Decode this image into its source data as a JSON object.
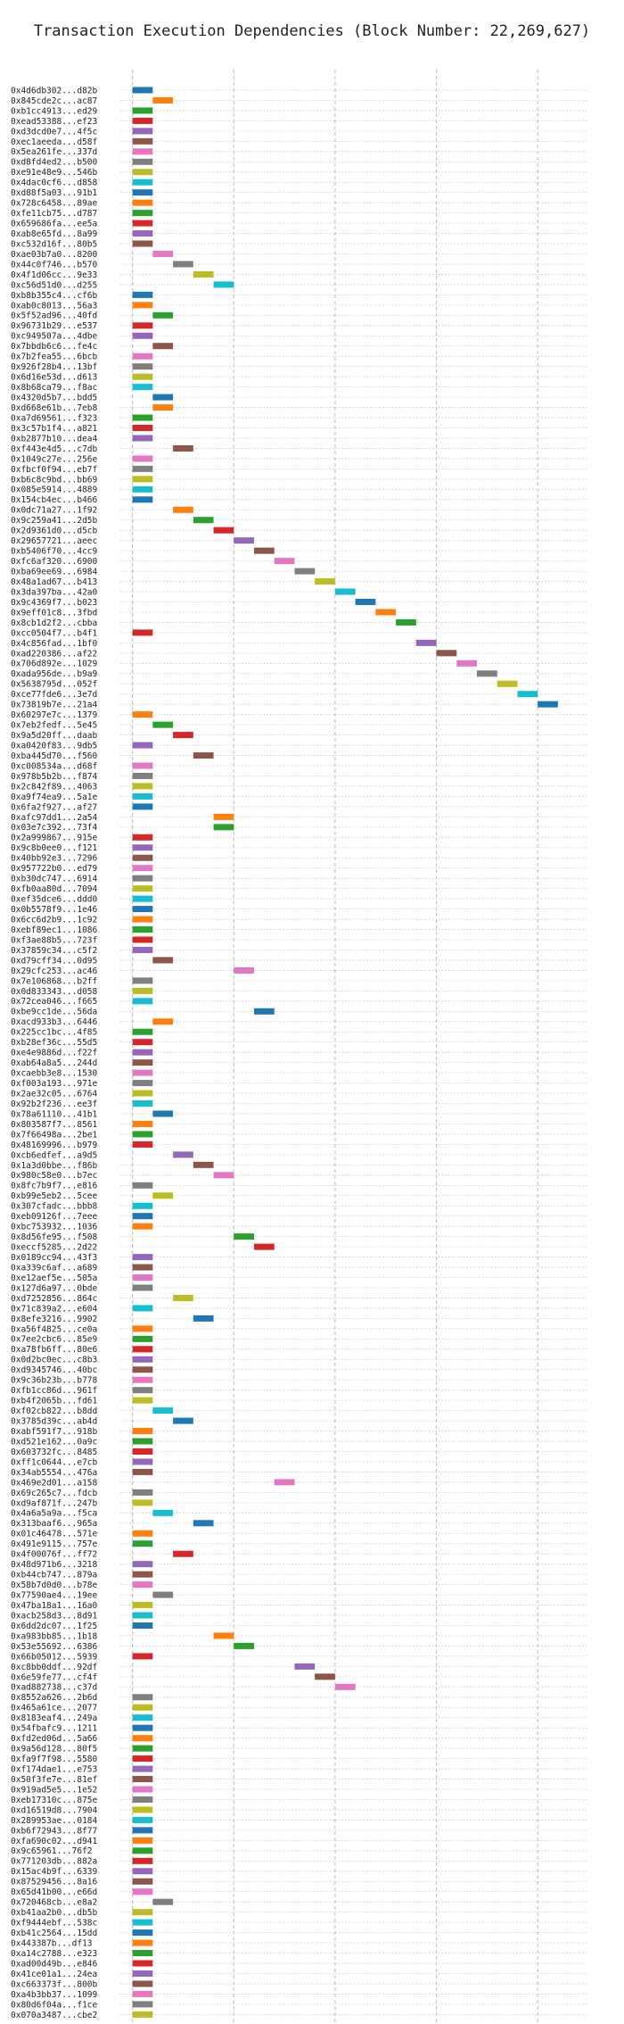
{
  "chart_data": {
    "type": "bar",
    "orientation": "horizontal-gantt",
    "title": "Transaction Execution Dependencies (Block Number: 22,269,627)",
    "xlabel": "",
    "ylabel": "",
    "xlim": [
      -0.6,
      22.5
    ],
    "xticks": [
      0,
      5,
      10,
      15,
      20
    ],
    "grid": true,
    "bar_length": 1,
    "palette": [
      "#1f77b4",
      "#ff7f0e",
      "#2ca02c",
      "#d62728",
      "#9467bd",
      "#8c564b",
      "#e377c2",
      "#7f7f7f",
      "#bcbd22",
      "#17becf"
    ],
    "transactions": [
      {
        "label": "0x4d6db302...d82b",
        "start": 0
      },
      {
        "label": "0x845cde2c...ac87",
        "start": 1
      },
      {
        "label": "0xb1cc4913...ed29",
        "start": 0
      },
      {
        "label": "0xead53388...ef23",
        "start": 0
      },
      {
        "label": "0xd3dcd0e7...4f5c",
        "start": 0
      },
      {
        "label": "0xec1aeeda...d58f",
        "start": 0
      },
      {
        "label": "0x5ea261fe...337d",
        "start": 0
      },
      {
        "label": "0xd8fd4ed2...b500",
        "start": 0
      },
      {
        "label": "0xe91e48e9...546b",
        "start": 0
      },
      {
        "label": "0x4dac0cf6...d858",
        "start": 0
      },
      {
        "label": "0xd88f5a03...91b1",
        "start": 0
      },
      {
        "label": "0x728c6458...89ae",
        "start": 0
      },
      {
        "label": "0xfe11cb75...d787",
        "start": 0
      },
      {
        "label": "0x659686fa...ee5a",
        "start": 0
      },
      {
        "label": "0xab8e65fd...8a99",
        "start": 0
      },
      {
        "label": "0xc532d16f...80b5",
        "start": 0
      },
      {
        "label": "0xae03b7a0...8200",
        "start": 1
      },
      {
        "label": "0x44c0f746...b570",
        "start": 2
      },
      {
        "label": "0x4f1d06cc...9e33",
        "start": 3
      },
      {
        "label": "0xc56d51d0...d255",
        "start": 4
      },
      {
        "label": "0xb8b355c4...cf6b",
        "start": 0
      },
      {
        "label": "0xab0c8013...56a3",
        "start": 0
      },
      {
        "label": "0x5f52ad96...40fd",
        "start": 1
      },
      {
        "label": "0x96731b29...e537",
        "start": 0
      },
      {
        "label": "0xc949507a...4dbe",
        "start": 0
      },
      {
        "label": "0x7bbdb6c6...fe4c",
        "start": 1
      },
      {
        "label": "0x7b2fea55...6bcb",
        "start": 0
      },
      {
        "label": "0x926f28b4...13bf",
        "start": 0
      },
      {
        "label": "0x6d16e53d...d613",
        "start": 0
      },
      {
        "label": "0x8b68ca79...f8ac",
        "start": 0
      },
      {
        "label": "0x4320d5b7...bdd5",
        "start": 1
      },
      {
        "label": "0xd668e61b...7eb8",
        "start": 1
      },
      {
        "label": "0xa7d69561...f323",
        "start": 0
      },
      {
        "label": "0x3c57b1f4...a821",
        "start": 0
      },
      {
        "label": "0xb2877b10...dea4",
        "start": 0
      },
      {
        "label": "0xf443e4d5...c7db",
        "start": 2
      },
      {
        "label": "0x1049c27e...256e",
        "start": 0
      },
      {
        "label": "0xfbcf0f94...eb7f",
        "start": 0
      },
      {
        "label": "0xb6c8c9bd...bb69",
        "start": 0
      },
      {
        "label": "0x085e5914...4889",
        "start": 0
      },
      {
        "label": "0x154cb4ec...b466",
        "start": 0
      },
      {
        "label": "0x0dc71a27...1f92",
        "start": 2
      },
      {
        "label": "0x9c259a41...2d5b",
        "start": 3
      },
      {
        "label": "0x2d9361d0...d5cb",
        "start": 4
      },
      {
        "label": "0x29657721...aeec",
        "start": 5
      },
      {
        "label": "0xb5406f70...4cc9",
        "start": 6
      },
      {
        "label": "0xfc6af320...6900",
        "start": 7
      },
      {
        "label": "0xba69ee69...6984",
        "start": 8
      },
      {
        "label": "0x48a1ad67...b413",
        "start": 9
      },
      {
        "label": "0x3da397ba...42a0",
        "start": 10
      },
      {
        "label": "0x9c4369f7...b023",
        "start": 11
      },
      {
        "label": "0x9eff01c8...3fbd",
        "start": 12
      },
      {
        "label": "0x8cb1d2f2...cbba",
        "start": 13
      },
      {
        "label": "0xcc0504f7...b4f1",
        "start": 0
      },
      {
        "label": "0x4c856fad...1bf0",
        "start": 14
      },
      {
        "label": "0xad220386...af22",
        "start": 15
      },
      {
        "label": "0x706d892e...1029",
        "start": 16
      },
      {
        "label": "0xada956de...b9a9",
        "start": 17
      },
      {
        "label": "0x5638795d...052f",
        "start": 18
      },
      {
        "label": "0xce77fde6...3e7d",
        "start": 19
      },
      {
        "label": "0x73819b7e...21a4",
        "start": 20
      },
      {
        "label": "0x60297e7c...1379",
        "start": 0
      },
      {
        "label": "0x7eb2fedf...5e45",
        "start": 1
      },
      {
        "label": "0x9a5d20ff...daab",
        "start": 2
      },
      {
        "label": "0xa0420f83...9db5",
        "start": 0
      },
      {
        "label": "0xba445d70...f560",
        "start": 3
      },
      {
        "label": "0xc008534a...d68f",
        "start": 0
      },
      {
        "label": "0x978b5b2b...f874",
        "start": 0
      },
      {
        "label": "0x2c842f89...4063",
        "start": 0
      },
      {
        "label": "0xa9f74ea9...5a1e",
        "start": 0
      },
      {
        "label": "0x6fa2f927...af27",
        "start": 0
      },
      {
        "label": "0xafc97dd1...2a54",
        "start": 4
      },
      {
        "label": "0x03e7c392...73f4",
        "start": 4
      },
      {
        "label": "0x2a999867...915e",
        "start": 0
      },
      {
        "label": "0x9c8b0ee0...f121",
        "start": 0
      },
      {
        "label": "0x40bb92e3...7296",
        "start": 0
      },
      {
        "label": "0x957722b0...ed79",
        "start": 0
      },
      {
        "label": "0xb30dc747...6914",
        "start": 0
      },
      {
        "label": "0xfb0aa80d...7094",
        "start": 0
      },
      {
        "label": "0xef35dce6...ddd0",
        "start": 0
      },
      {
        "label": "0x0b5578f9...1e46",
        "start": 0
      },
      {
        "label": "0x6cc6d2b9...1c92",
        "start": 0
      },
      {
        "label": "0xebf89ec1...1086",
        "start": 0
      },
      {
        "label": "0xf3ae88b5...723f",
        "start": 0
      },
      {
        "label": "0x37859c34...c5f2",
        "start": 0
      },
      {
        "label": "0xd79cff34...0d95",
        "start": 1
      },
      {
        "label": "0x29cfc253...ac46",
        "start": 5
      },
      {
        "label": "0x7e106868...b2ff",
        "start": 0
      },
      {
        "label": "0x0d833343...d058",
        "start": 0
      },
      {
        "label": "0x72cea046...f665",
        "start": 0
      },
      {
        "label": "0xbe9cc1de...56da",
        "start": 6
      },
      {
        "label": "0xacd933b3...6446",
        "start": 1
      },
      {
        "label": "0x225cc1bc...4f85",
        "start": 0
      },
      {
        "label": "0xb28ef36c...55d5",
        "start": 0
      },
      {
        "label": "0xe4e9886d...f22f",
        "start": 0
      },
      {
        "label": "0xab64a8a5...244d",
        "start": 0
      },
      {
        "label": "0xcaebb3e8...1530",
        "start": 0
      },
      {
        "label": "0xf003a193...971e",
        "start": 0
      },
      {
        "label": "0x2ae32c05...6764",
        "start": 0
      },
      {
        "label": "0x92b2f236...ee3f",
        "start": 0
      },
      {
        "label": "0x78a61110...41b1",
        "start": 1
      },
      {
        "label": "0x803587f7...8561",
        "start": 0
      },
      {
        "label": "0x7f66498a...2be1",
        "start": 0
      },
      {
        "label": "0x48169996...b979",
        "start": 0
      },
      {
        "label": "0xcb6edfef...a9d5",
        "start": 2
      },
      {
        "label": "0x1a3d0bbe...f86b",
        "start": 3
      },
      {
        "label": "0x980c58e0...b7ec",
        "start": 4
      },
      {
        "label": "0x8fc7b9f7...e816",
        "start": 0
      },
      {
        "label": "0xb99e5eb2...5cee",
        "start": 1
      },
      {
        "label": "0x307cfadc...bbb8",
        "start": 0
      },
      {
        "label": "0xeb09126f...7eee",
        "start": 0
      },
      {
        "label": "0xbc753932...1036",
        "start": 0
      },
      {
        "label": "0x8d56fe95...f508",
        "start": 5
      },
      {
        "label": "0xeccf5285...2d22",
        "start": 6
      },
      {
        "label": "0x0189cc94...43f3",
        "start": 0
      },
      {
        "label": "0xa339c6af...a689",
        "start": 0
      },
      {
        "label": "0xe12aef5e...505a",
        "start": 0
      },
      {
        "label": "0x127d6a97...0bde",
        "start": 0
      },
      {
        "label": "0xd7252856...864c",
        "start": 2
      },
      {
        "label": "0x71c839a2...e604",
        "start": 0
      },
      {
        "label": "0x8efe3216...9902",
        "start": 3
      },
      {
        "label": "0xa56f4825...ce0a",
        "start": 0
      },
      {
        "label": "0x7ee2cbc6...85e9",
        "start": 0
      },
      {
        "label": "0xa78fb6ff...80e6",
        "start": 0
      },
      {
        "label": "0x0d2bc0ec...c8b3",
        "start": 0
      },
      {
        "label": "0xd9345746...40bc",
        "start": 0
      },
      {
        "label": "0x9c36b23b...b778",
        "start": 0
      },
      {
        "label": "0xfb1cc86d...961f",
        "start": 0
      },
      {
        "label": "0xb4f2065b...fd61",
        "start": 0
      },
      {
        "label": "0xf02cb822...b8dd",
        "start": 1
      },
      {
        "label": "0x3785d39c...ab4d",
        "start": 2
      },
      {
        "label": "0xabf591f7...918b",
        "start": 0
      },
      {
        "label": "0xd521e162...0a9c",
        "start": 0
      },
      {
        "label": "0x603732fc...8485",
        "start": 0
      },
      {
        "label": "0xff1c0644...e7cb",
        "start": 0
      },
      {
        "label": "0x34ab5554...476a",
        "start": 0
      },
      {
        "label": "0x469e2d01...a158",
        "start": 7
      },
      {
        "label": "0x69c265c7...fdcb",
        "start": 0
      },
      {
        "label": "0xd9af871f...247b",
        "start": 0
      },
      {
        "label": "0x4a6a5a9a...f5ca",
        "start": 1
      },
      {
        "label": "0x313baaf6...965a",
        "start": 3
      },
      {
        "label": "0x01c46478...571e",
        "start": 0
      },
      {
        "label": "0x491e9115...757e",
        "start": 0
      },
      {
        "label": "0x4f00076f...ff72",
        "start": 2
      },
      {
        "label": "0x48d971b6...3218",
        "start": 0
      },
      {
        "label": "0xb44cb747...879a",
        "start": 0
      },
      {
        "label": "0x58b7d0d0...b78e",
        "start": 0
      },
      {
        "label": "0x77590ae4...19ee",
        "start": 1
      },
      {
        "label": "0x47ba18a1...16a0",
        "start": 0
      },
      {
        "label": "0xacb258d3...8d91",
        "start": 0
      },
      {
        "label": "0x6dd2dc07...1f25",
        "start": 0
      },
      {
        "label": "0xa983bb85...1b18",
        "start": 4
      },
      {
        "label": "0x53e55692...6386",
        "start": 5
      },
      {
        "label": "0x66b05012...5939",
        "start": 0
      },
      {
        "label": "0xc8bb0ddf...92df",
        "start": 8
      },
      {
        "label": "0x6e59fe77...cf4f",
        "start": 9
      },
      {
        "label": "0xad882738...c37d",
        "start": 10
      },
      {
        "label": "0x8552a626...2b6d",
        "start": 0
      },
      {
        "label": "0x465a61ce...2077",
        "start": 0
      },
      {
        "label": "0x8183eaf4...249a",
        "start": 0
      },
      {
        "label": "0x54fbafc9...1211",
        "start": 0
      },
      {
        "label": "0xfd2ed06d...5a66",
        "start": 0
      },
      {
        "label": "0x9a56d128...80f5",
        "start": 0
      },
      {
        "label": "0xfa9f7f98...5580",
        "start": 0
      },
      {
        "label": "0xf174dae1...e753",
        "start": 0
      },
      {
        "label": "0x50f3fe7e...81ef",
        "start": 0
      },
      {
        "label": "0x919ad5e5...1e52",
        "start": 0
      },
      {
        "label": "0xeb17310c...875e",
        "start": 0
      },
      {
        "label": "0xd16519d8...7904",
        "start": 0
      },
      {
        "label": "0x289953ae...0184",
        "start": 0
      },
      {
        "label": "0xb6f72943...8f77",
        "start": 0
      },
      {
        "label": "0xfa690c02...d941",
        "start": 0
      },
      {
        "label": "0x9c65961...76f2",
        "start": 0
      },
      {
        "label": "0x771203db...882a",
        "start": 0
      },
      {
        "label": "0x15ac4b9f...6339",
        "start": 0
      },
      {
        "label": "0x87529456...8a16",
        "start": 0
      },
      {
        "label": "0x65d41b00...e66d",
        "start": 0
      },
      {
        "label": "0x720468cb...e8a2",
        "start": 1
      },
      {
        "label": "0xb41aa2b0...db5b",
        "start": 0
      },
      {
        "label": "0xf9444ebf...538c",
        "start": 0
      },
      {
        "label": "0xb41c2564...15dd",
        "start": 0
      },
      {
        "label": "0x443387b...df13",
        "start": 0
      },
      {
        "label": "0xa14c2788...e323",
        "start": 0
      },
      {
        "label": "0xad00d49b...e846",
        "start": 0
      },
      {
        "label": "0x41ce01a1...24ea",
        "start": 0
      },
      {
        "label": "0xc663373f...800b",
        "start": 0
      },
      {
        "label": "0xa4b3bb37...1099",
        "start": 0
      },
      {
        "label": "0x80d6f04a...f1ce",
        "start": 0
      },
      {
        "label": "0x070a3487...cbe2",
        "start": 0
      }
    ]
  }
}
